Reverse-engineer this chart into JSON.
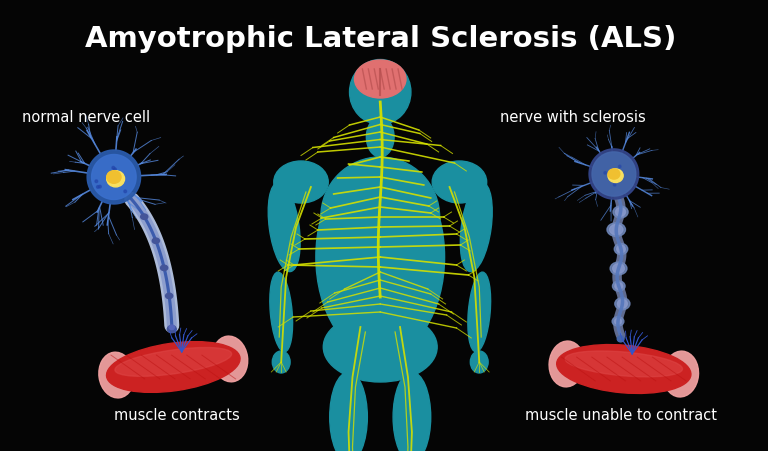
{
  "title": "Amyotrophic Lateral Sclerosis (ALS)",
  "title_color": "#ffffff",
  "title_fontsize": 21,
  "title_fontweight": "bold",
  "bg_color": "#050505",
  "label_normal_nerve": "normal nerve cell",
  "label_sclerosis_nerve": "nerve with sclerosis",
  "label_muscle_contracts": "muscle contracts",
  "label_muscle_unable": "muscle unable to contract",
  "label_color": "#ffffff",
  "label_fontsize": 10.5,
  "body_fill": "#1a8fa0",
  "body_edge": "#0d6e80",
  "nerve_color": "#d4e000",
  "brain_color": "#e07070",
  "brain_fold_color": "#b85050",
  "neuron_body_color": "#3a6fcc",
  "neuron_body_outer": "#2a5aaa",
  "neuron_dendrite_color": "#5588dd",
  "neuron_nucleus_color": "#f0c030",
  "neuron_nucleus_inner": "#f8e060",
  "axon_myelin_outer": "#c0d0f0",
  "axon_myelin_inner": "#8899cc",
  "axon_core": "#3355aa",
  "axon_node_color": "#445599",
  "sclerosis_body_color": "#4466aa",
  "sclerosis_bleb_outer": "#7088bb",
  "sclerosis_bleb_inner": "#8899cc",
  "sclerosis_axon_color": "#5577bb",
  "muscle_dark": "#bb1111",
  "muscle_mid": "#cc2222",
  "muscle_light": "#dd4444",
  "muscle_tip": "#f0a0a0",
  "nerve_terminal_color": "#2244aa"
}
